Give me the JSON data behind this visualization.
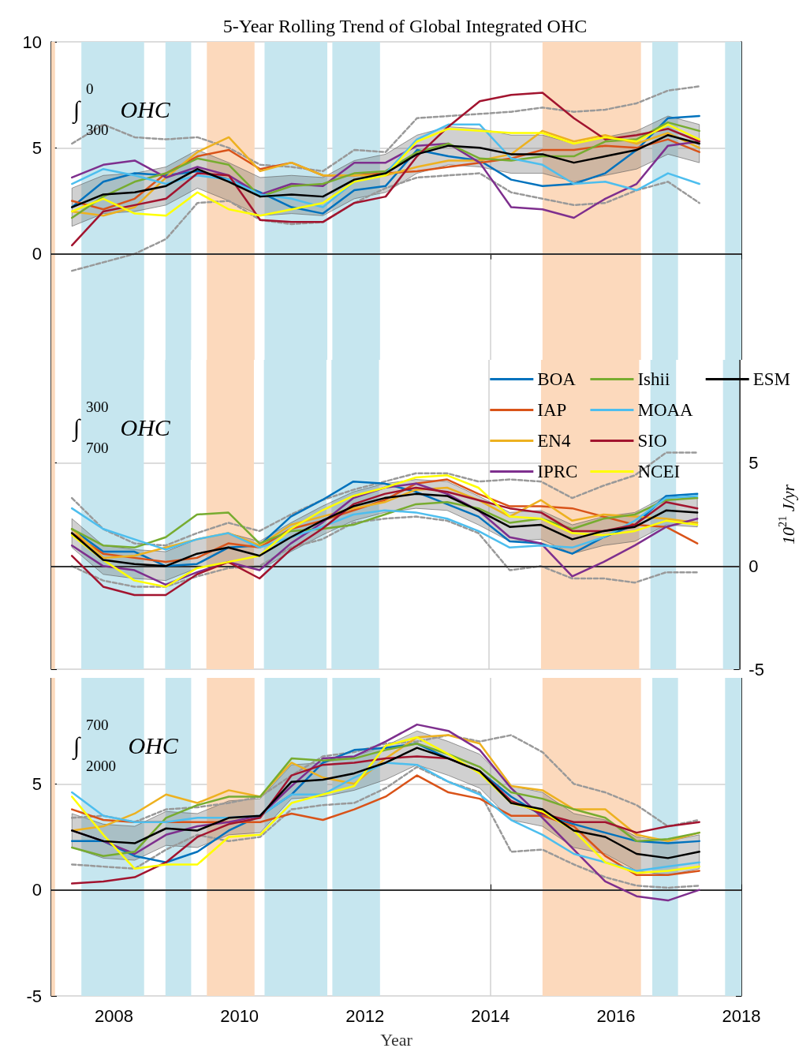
{
  "chart_data": [
    {
      "type": "line",
      "title": "5-Year Rolling Trend of Global Integrated OHC",
      "annotations": [
        "∫$_{300}$$^{0}$ OHC"
      ],
      "xlim": [
        2007,
        2018
      ],
      "xticks": [
        2008,
        2010,
        2012,
        2014,
        2016,
        2018
      ],
      "ylim": [
        -5,
        10
      ],
      "yticks": [
        0,
        5,
        10
      ],
      "tick_labels": "y",
      "grid": true,
      "x": [
        2007.33,
        2007.83,
        2008.33,
        2008.83,
        2009.33,
        2009.83,
        2010.33,
        2010.83,
        2011.33,
        2011.83,
        2012.33,
        2012.83,
        2013.33,
        2013.83,
        2014.33,
        2014.83,
        2015.33,
        2015.83,
        2016.33,
        2016.83,
        2017.33
      ],
      "ref_lines": [
        {
          "axis": "y",
          "value": 0,
          "color": "#333333"
        }
      ],
      "bands": [
        {
          "axis": "x",
          "from": 2007,
          "to": 2007.06,
          "color": "#fcd9bc"
        },
        {
          "axis": "x",
          "from": 2007.48,
          "to": 2008.48,
          "color": "#c6e6ef"
        },
        {
          "axis": "x",
          "from": 2008.82,
          "to": 2009.23,
          "color": "#c6e6ef"
        },
        {
          "axis": "x",
          "from": 2009.48,
          "to": 2010.24,
          "color": "#fcd9bc"
        },
        {
          "axis": "x",
          "from": 2010.4,
          "to": 2011.4,
          "color": "#c6e6ef"
        },
        {
          "axis": "x",
          "from": 2011.48,
          "to": 2012.24,
          "color": "#c6e6ef"
        },
        {
          "axis": "x",
          "from": 2014.83,
          "to": 2016.4,
          "color": "#fcd9bc"
        },
        {
          "axis": "x",
          "from": 2016.58,
          "to": 2016.99,
          "color": "#c6e6ef"
        },
        {
          "axis": "x",
          "from": 2017.74,
          "to": 2018,
          "color": "#c6e6ef"
        }
      ],
      "series": [
        {
          "color": "#999999",
          "line_style": "dashed",
          "values": [
            5.2,
            6.1,
            5.5,
            5.4,
            5.5,
            5.0,
            4.2,
            4.1,
            3.9,
            4.9,
            4.8,
            6.4,
            6.5,
            6.6,
            6.7,
            6.9,
            6.7,
            6.8,
            7.1,
            7.7,
            7.9
          ]
        },
        {
          "color": "#999999",
          "line_style": "dashed",
          "values": [
            -0.8,
            -0.4,
            0.0,
            0.7,
            2.4,
            2.5,
            1.6,
            1.4,
            1.5,
            2.4,
            3.1,
            3.6,
            3.7,
            3.8,
            2.9,
            2.6,
            2.3,
            2.4,
            3.0,
            3.4,
            2.4
          ]
        },
        {
          "color": "#0072bd",
          "values": [
            2.2,
            3.4,
            3.8,
            3.7,
            3.9,
            3.5,
            2.9,
            2.2,
            1.9,
            3.0,
            3.2,
            4.9,
            4.6,
            4.4,
            3.5,
            3.2,
            3.3,
            3.8,
            4.9,
            6.4,
            6.5
          ]
        },
        {
          "color": "#d95319",
          "values": [
            2.5,
            2.1,
            2.6,
            3.8,
            4.6,
            4.9,
            4.0,
            4.3,
            3.7,
            3.7,
            3.8,
            3.9,
            4.1,
            4.3,
            4.5,
            4.9,
            4.9,
            5.1,
            5.0,
            5.4,
            4.8
          ]
        },
        {
          "color": "#edb120",
          "values": [
            2.0,
            1.8,
            2.2,
            3.6,
            4.8,
            5.5,
            3.9,
            4.3,
            3.7,
            3.7,
            3.7,
            4.1,
            4.4,
            4.4,
            4.7,
            5.8,
            5.3,
            5.6,
            5.2,
            5.7,
            5.0
          ]
        },
        {
          "color": "#7e2f8e",
          "values": [
            3.6,
            4.2,
            4.4,
            3.6,
            4.1,
            3.7,
            2.8,
            3.3,
            3.2,
            4.3,
            4.3,
            5.1,
            5.2,
            4.3,
            2.2,
            2.1,
            1.7,
            2.6,
            3.3,
            5.1,
            5.3
          ]
        },
        {
          "color": "#77ac30",
          "values": [
            1.7,
            2.7,
            3.4,
            3.8,
            4.5,
            4.2,
            2.7,
            3.2,
            3.3,
            3.8,
            3.9,
            4.8,
            5.2,
            4.5,
            4.4,
            4.6,
            4.6,
            5.3,
            5.4,
            6.2,
            5.8
          ]
        },
        {
          "color": "#4dbeee",
          "values": [
            3.3,
            4.0,
            3.7,
            3.3,
            3.7,
            3.5,
            2.8,
            2.6,
            2.2,
            3.4,
            3.8,
            5.4,
            6.1,
            6.1,
            4.5,
            4.2,
            3.3,
            3.4,
            3.0,
            3.8,
            3.3
          ]
        },
        {
          "color": "#a2142f",
          "values": [
            0.4,
            2.0,
            2.3,
            2.6,
            3.8,
            3.7,
            1.6,
            1.5,
            1.5,
            2.4,
            2.7,
            4.6,
            6.0,
            7.2,
            7.5,
            7.6,
            6.4,
            5.4,
            5.6,
            5.9,
            5.3
          ]
        },
        {
          "color": "#ffff00",
          "values": [
            2.0,
            2.6,
            1.9,
            1.8,
            2.9,
            2.1,
            1.8,
            2.1,
            2.4,
            3.4,
            3.7,
            5.3,
            5.9,
            5.8,
            5.7,
            5.7,
            5.2,
            5.5,
            5.3,
            6.1,
            5.4
          ]
        },
        {
          "color": "#000000",
          "values": [
            2.2,
            2.8,
            2.9,
            3.2,
            4.0,
            3.4,
            2.7,
            2.8,
            2.7,
            3.5,
            3.8,
            4.7,
            5.1,
            5.0,
            4.7,
            4.7,
            4.3,
            4.6,
            4.9,
            5.6,
            5.2
          ],
          "lower": [
            1.3,
            1.9,
            2.0,
            2.3,
            3.1,
            2.5,
            1.8,
            1.9,
            1.8,
            2.6,
            2.9,
            3.8,
            4.2,
            4.1,
            3.8,
            3.8,
            3.4,
            3.7,
            4.0,
            4.7,
            4.3
          ],
          "upper": [
            3.1,
            3.7,
            3.8,
            4.1,
            4.9,
            4.3,
            3.6,
            3.7,
            3.6,
            4.4,
            4.7,
            5.6,
            6.0,
            5.9,
            5.6,
            5.6,
            5.2,
            5.5,
            5.8,
            6.5,
            6.1
          ]
        }
      ]
    },
    {
      "type": "line",
      "annotations": [
        "∫$_{700}$$^{300}$ OHC"
      ],
      "ylabel": "10$^{21}$ J/yr",
      "legend": "top right",
      "xlim": [
        2007,
        2018
      ],
      "xticks": [
        2008,
        2010,
        2012,
        2014,
        2016,
        2018
      ],
      "ylim": [
        -5,
        10
      ],
      "yticks": [
        -5,
        0,
        5
      ],
      "tick_labels": "y",
      "grid": true,
      "x": [
        2007.33,
        2007.83,
        2008.33,
        2008.83,
        2009.33,
        2009.83,
        2010.33,
        2010.83,
        2011.33,
        2011.83,
        2012.33,
        2012.83,
        2013.33,
        2013.83,
        2014.33,
        2014.83,
        2015.33,
        2015.83,
        2016.33,
        2016.83,
        2017.33
      ],
      "ref_lines": [
        {
          "axis": "y",
          "value": 0,
          "color": "#333333"
        }
      ],
      "bands": [
        {
          "axis": "x",
          "from": 2007,
          "to": 2007.06,
          "color": "#fcd9bc"
        },
        {
          "axis": "x",
          "from": 2007.48,
          "to": 2008.48,
          "color": "#c6e6ef"
        },
        {
          "axis": "x",
          "from": 2008.82,
          "to": 2009.23,
          "color": "#c6e6ef"
        },
        {
          "axis": "x",
          "from": 2009.48,
          "to": 2010.24,
          "color": "#fcd9bc"
        },
        {
          "axis": "x",
          "from": 2010.4,
          "to": 2011.4,
          "color": "#c6e6ef"
        },
        {
          "axis": "x",
          "from": 2011.48,
          "to": 2012.24,
          "color": "#c6e6ef"
        },
        {
          "axis": "x",
          "from": 2014.83,
          "to": 2016.4,
          "color": "#fcd9bc"
        },
        {
          "axis": "x",
          "from": 2016.58,
          "to": 2016.99,
          "color": "#c6e6ef"
        },
        {
          "axis": "x",
          "from": 2017.74,
          "to": 2018,
          "color": "#c6e6ef"
        }
      ],
      "series": [
        {
          "color": "#999999",
          "line_style": "dashed",
          "values": [
            3.3,
            1.8,
            1.1,
            1.0,
            1.6,
            2.1,
            1.7,
            2.5,
            3.2,
            3.7,
            4.1,
            4.5,
            4.5,
            4.1,
            4.2,
            4.1,
            3.3,
            3.9,
            4.4,
            5.5,
            5.5
          ]
        },
        {
          "color": "#999999",
          "line_style": "dashed",
          "values": [
            0.0,
            -0.7,
            -1.0,
            -1.0,
            -0.5,
            -0.1,
            0.0,
            0.9,
            1.3,
            2.1,
            2.3,
            2.4,
            2.2,
            1.6,
            -0.2,
            0.0,
            -0.6,
            -0.6,
            -0.8,
            -0.3,
            -0.3
          ]
        },
        {
          "name": "BOA",
          "color": "#0072bd",
          "values": [
            1.8,
            0.7,
            0.7,
            0.0,
            0.1,
            0.9,
            1.0,
            2.4,
            3.2,
            4.1,
            4.0,
            3.6,
            3.0,
            2.4,
            1.2,
            1.1,
            0.6,
            1.4,
            2.0,
            3.4,
            3.5
          ]
        },
        {
          "name": "IAP",
          "color": "#d95319",
          "values": [
            1.6,
            0.6,
            0.4,
            0.2,
            0.4,
            1.1,
            0.9,
            1.8,
            2.2,
            2.7,
            3.2,
            4.0,
            4.2,
            3.5,
            2.9,
            2.9,
            2.8,
            2.4,
            2.0,
            1.9,
            1.1
          ]
        },
        {
          "name": "EN4",
          "color": "#edb120",
          "values": [
            1.8,
            0.4,
            0.5,
            0.9,
            1.3,
            1.6,
            1.0,
            2.0,
            2.4,
            2.8,
            3.1,
            3.7,
            3.8,
            3.2,
            2.4,
            3.2,
            2.2,
            2.5,
            2.4,
            2.3,
            2.1
          ]
        },
        {
          "name": "IPRC",
          "color": "#7e2f8e",
          "values": [
            1.0,
            0.0,
            -0.2,
            -0.9,
            -0.3,
            0.2,
            -0.2,
            1.1,
            2.1,
            3.3,
            3.8,
            4.0,
            3.5,
            2.7,
            1.4,
            1.1,
            -0.5,
            0.2,
            1.0,
            1.9,
            2.3
          ]
        },
        {
          "name": "Ishii",
          "color": "#77ac30",
          "values": [
            1.8,
            1.0,
            0.9,
            1.4,
            2.5,
            2.6,
            1.1,
            1.7,
            1.8,
            2.0,
            2.5,
            3.0,
            3.1,
            2.8,
            2.1,
            2.3,
            1.8,
            2.3,
            2.5,
            3.2,
            3.3
          ]
        },
        {
          "name": "MOAA",
          "color": "#4dbeee",
          "values": [
            2.8,
            1.8,
            1.3,
            0.8,
            1.3,
            1.6,
            0.9,
            1.4,
            1.9,
            2.5,
            2.7,
            2.6,
            2.3,
            1.7,
            0.9,
            1.0,
            0.9,
            1.4,
            2.2,
            3.3,
            3.4
          ]
        },
        {
          "name": "SIO",
          "color": "#a2142f",
          "values": [
            0.5,
            -1.0,
            -1.4,
            -1.4,
            -0.4,
            0.2,
            -0.6,
            0.8,
            1.8,
            3.0,
            3.5,
            3.8,
            3.6,
            3.2,
            2.8,
            2.6,
            1.7,
            1.7,
            2.0,
            3.1,
            2.8
          ]
        },
        {
          "name": "NCEI",
          "color": "#ffff00",
          "values": [
            1.5,
            0.3,
            -0.7,
            -1.0,
            -0.1,
            0.2,
            0.5,
            1.8,
            2.7,
            3.4,
            3.8,
            4.3,
            4.4,
            3.8,
            2.4,
            2.3,
            1.6,
            1.5,
            1.7,
            2.2,
            2.0
          ]
        },
        {
          "name": "ESM",
          "color": "#000000",
          "values": [
            1.6,
            0.3,
            0.1,
            0.0,
            0.6,
            0.9,
            0.5,
            1.4,
            2.2,
            2.9,
            3.3,
            3.5,
            3.4,
            2.7,
            1.9,
            2.0,
            1.3,
            1.7,
            1.9,
            2.7,
            2.6
          ],
          "lower": [
            0.9,
            -0.4,
            -0.6,
            -0.7,
            -0.1,
            0.2,
            -0.2,
            0.7,
            1.5,
            2.2,
            2.6,
            2.8,
            2.7,
            2.0,
            1.2,
            1.3,
            0.6,
            1.0,
            1.2,
            2.0,
            1.9
          ],
          "upper": [
            2.3,
            1.0,
            0.8,
            0.7,
            1.3,
            1.6,
            1.2,
            2.1,
            2.9,
            3.6,
            4.0,
            4.2,
            4.1,
            3.4,
            2.6,
            2.7,
            2.0,
            2.4,
            2.6,
            3.4,
            3.3
          ]
        }
      ]
    },
    {
      "type": "line",
      "annotations": [
        "∫$_{2000}$$^{700}$ OHC"
      ],
      "xlabel": "Year",
      "xlim": [
        2007,
        2018
      ],
      "xticks": [
        2008,
        2010,
        2012,
        2014,
        2016,
        2018
      ],
      "ylim": [
        -5,
        10
      ],
      "yticks": [
        -5,
        0,
        5
      ],
      "grid": true,
      "x": [
        2007.33,
        2007.83,
        2008.33,
        2008.83,
        2009.33,
        2009.83,
        2010.33,
        2010.83,
        2011.33,
        2011.83,
        2012.33,
        2012.83,
        2013.33,
        2013.83,
        2014.33,
        2014.83,
        2015.33,
        2015.83,
        2016.33,
        2016.83,
        2017.33
      ],
      "ref_lines": [
        {
          "axis": "y",
          "value": 0,
          "color": "#333333"
        }
      ],
      "bands": [
        {
          "axis": "x",
          "from": 2007,
          "to": 2007.06,
          "color": "#fcd9bc"
        },
        {
          "axis": "x",
          "from": 2007.48,
          "to": 2008.48,
          "color": "#c6e6ef"
        },
        {
          "axis": "x",
          "from": 2008.82,
          "to": 2009.23,
          "color": "#c6e6ef"
        },
        {
          "axis": "x",
          "from": 2009.48,
          "to": 2010.24,
          "color": "#fcd9bc"
        },
        {
          "axis": "x",
          "from": 2010.4,
          "to": 2011.4,
          "color": "#c6e6ef"
        },
        {
          "axis": "x",
          "from": 2011.48,
          "to": 2012.24,
          "color": "#c6e6ef"
        },
        {
          "axis": "x",
          "from": 2014.83,
          "to": 2016.4,
          "color": "#fcd9bc"
        },
        {
          "axis": "x",
          "from": 2016.58,
          "to": 2016.99,
          "color": "#c6e6ef"
        },
        {
          "axis": "x",
          "from": 2017.74,
          "to": 2018,
          "color": "#c6e6ef"
        }
      ],
      "series": [
        {
          "color": "#999999",
          "line_style": "dashed",
          "values": [
            3.4,
            3.5,
            3.2,
            3.8,
            3.9,
            4.1,
            4.4,
            5.4,
            6.3,
            6.5,
            6.9,
            7.0,
            7.3,
            7.0,
            7.3,
            6.5,
            5.0,
            4.6,
            4.0,
            3.0,
            3.3
          ]
        },
        {
          "color": "#999999",
          "line_style": "dashed",
          "values": [
            1.2,
            1.1,
            1.0,
            1.9,
            2.6,
            2.3,
            2.5,
            3.8,
            4.0,
            4.1,
            4.8,
            5.8,
            5.1,
            4.6,
            1.8,
            1.9,
            1.2,
            0.6,
            0.2,
            0.1,
            0.2
          ]
        },
        {
          "color": "#0072bd",
          "values": [
            2.3,
            2.3,
            1.6,
            1.3,
            1.8,
            2.8,
            3.5,
            4.5,
            6.0,
            6.6,
            6.7,
            6.9,
            6.2,
            5.6,
            4.4,
            3.5,
            3.1,
            2.7,
            2.3,
            2.2,
            2.3
          ]
        },
        {
          "color": "#d95319",
          "values": [
            3.8,
            3.3,
            3.2,
            3.2,
            3.2,
            3.2,
            3.2,
            3.6,
            3.3,
            3.8,
            4.4,
            5.4,
            4.6,
            4.3,
            3.5,
            3.5,
            3.0,
            1.6,
            0.7,
            0.7,
            0.9
          ]
        },
        {
          "color": "#edb120",
          "values": [
            2.8,
            3.0,
            3.6,
            4.5,
            4.1,
            4.7,
            4.4,
            6.0,
            5.3,
            5.0,
            6.2,
            7.2,
            7.3,
            6.9,
            4.9,
            4.7,
            3.8,
            3.8,
            2.6,
            2.3,
            2.7
          ]
        },
        {
          "color": "#7e2f8e",
          "values": [
            2.8,
            2.3,
            1.7,
            2.6,
            3.0,
            3.2,
            3.5,
            4.9,
            6.2,
            6.3,
            7.0,
            7.8,
            7.5,
            6.6,
            4.8,
            3.4,
            1.9,
            0.4,
            -0.3,
            -0.5,
            0.0
          ]
        },
        {
          "color": "#77ac30",
          "values": [
            2.0,
            1.6,
            1.8,
            3.4,
            4.0,
            4.4,
            4.4,
            6.2,
            6.1,
            6.2,
            6.6,
            6.9,
            6.4,
            5.8,
            4.6,
            4.3,
            3.8,
            3.4,
            2.3,
            2.4,
            2.7
          ]
        },
        {
          "color": "#4dbeee",
          "values": [
            4.6,
            3.5,
            3.2,
            3.2,
            3.4,
            3.4,
            3.5,
            4.5,
            4.5,
            5.3,
            6.0,
            5.9,
            5.1,
            4.5,
            3.3,
            2.6,
            1.7,
            1.3,
            0.9,
            1.1,
            1.3
          ]
        },
        {
          "color": "#a2142f",
          "values": [
            0.3,
            0.4,
            0.6,
            1.3,
            2.5,
            3.1,
            3.4,
            5.4,
            5.9,
            6.0,
            6.2,
            6.3,
            6.2,
            5.6,
            4.2,
            3.6,
            3.2,
            3.2,
            2.7,
            3.0,
            3.2
          ]
        },
        {
          "color": "#ffff00",
          "values": [
            4.4,
            2.6,
            1.0,
            1.2,
            1.2,
            2.5,
            2.6,
            4.1,
            4.5,
            4.9,
            6.8,
            7.2,
            6.4,
            5.5,
            4.1,
            3.7,
            2.8,
            1.3,
            0.8,
            0.9,
            1.1
          ]
        },
        {
          "color": "#000000",
          "values": [
            2.8,
            2.3,
            2.2,
            2.9,
            2.8,
            3.4,
            3.5,
            5.1,
            5.2,
            5.5,
            6.0,
            6.7,
            6.2,
            5.6,
            4.1,
            3.8,
            2.8,
            2.5,
            1.7,
            1.5,
            1.8
          ],
          "lower": [
            2.0,
            1.5,
            1.4,
            2.1,
            2.0,
            2.6,
            2.7,
            4.3,
            4.4,
            4.7,
            5.2,
            5.9,
            5.4,
            4.8,
            3.3,
            3.0,
            2.0,
            1.7,
            0.9,
            0.7,
            1.0
          ],
          "upper": [
            3.6,
            3.1,
            3.0,
            3.7,
            3.6,
            4.2,
            4.3,
            5.9,
            6.0,
            6.3,
            6.8,
            7.5,
            7.0,
            6.4,
            4.9,
            4.6,
            3.6,
            3.3,
            2.5,
            2.3,
            2.6
          ]
        }
      ]
    }
  ]
}
